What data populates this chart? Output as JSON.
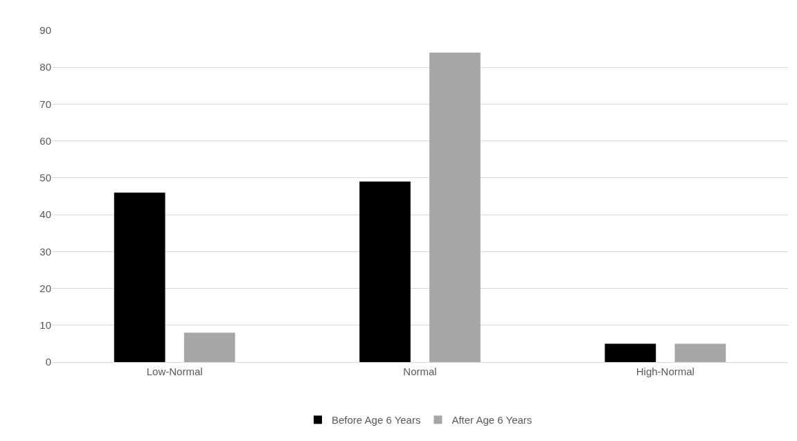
{
  "chart_data": {
    "type": "bar",
    "categories": [
      "Low-Normal",
      "Normal",
      "High-Normal"
    ],
    "series": [
      {
        "name": "Before Age 6 Years",
        "color": "#000000",
        "values": [
          46,
          49,
          5
        ]
      },
      {
        "name": "After Age 6 Years",
        "color": "#a6a6a6",
        "values": [
          8,
          84,
          5
        ]
      }
    ],
    "ylim": [
      0,
      90
    ],
    "yticks": [
      0,
      10,
      20,
      30,
      40,
      50,
      60,
      70,
      80,
      90
    ],
    "grid": "y",
    "legend": "bottom"
  }
}
